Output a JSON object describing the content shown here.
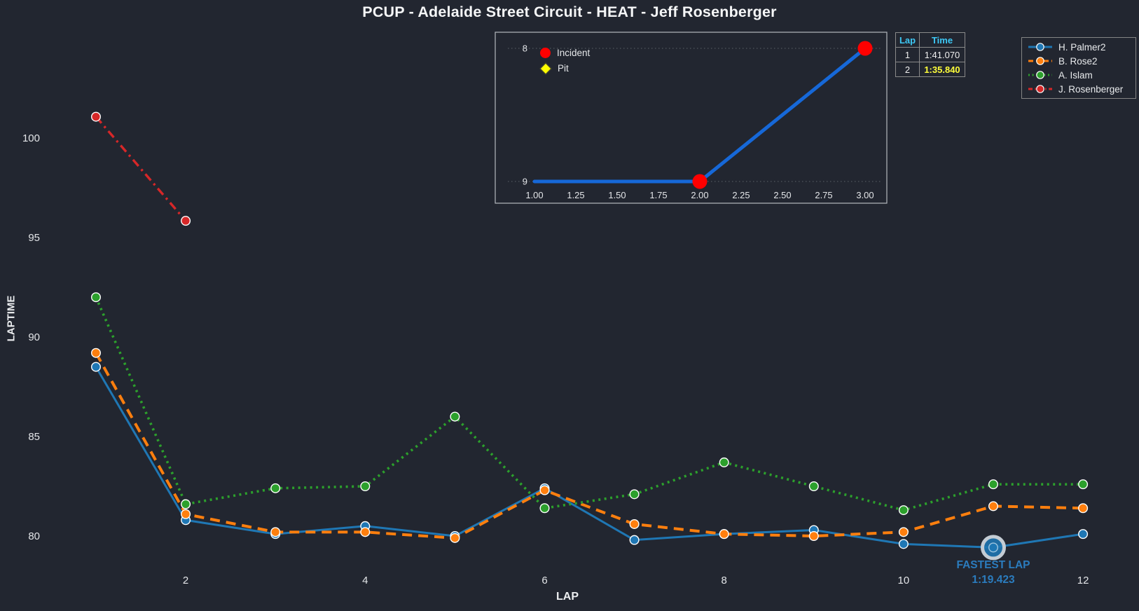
{
  "title": "PCUP - Adelaide Street Circuit - HEAT - Jeff Rosenberger",
  "colors": {
    "background": "#222630",
    "tick_text": "#e3e5e8",
    "palmer_blue": "#1f77b4",
    "rose_orange": "#ff7f0e",
    "islam_green": "#2ca02c",
    "rosenberger_red": "#d62728",
    "inset_line_blue": "#1668d8",
    "incident_red": "#ff0000",
    "pit_yellow": "#ffff00",
    "fastest_ring_silver": "#c4ccd4",
    "annotation_blue": "#2b7cbe",
    "table_header_cyan": "#3dc9f6",
    "table_highlight_yellow": "#ffff3b",
    "table_border": "#8a8a8a",
    "legend_border": "#848484",
    "inset_grid": "#5c6168",
    "inset_border": "#b4b8be"
  },
  "axis": {
    "x_label": "LAP",
    "y_label": "LAPTIME"
  },
  "annotation": {
    "line1": "FASTEST LAP",
    "line2": "1:19.423"
  },
  "laptime_table": {
    "header_lap": "Lap",
    "header_time": "Time",
    "rows": [
      {
        "lap": "1",
        "time": "1:41.070",
        "highlight": false
      },
      {
        "lap": "2",
        "time": "1:35.840",
        "highlight": true
      }
    ]
  },
  "legend": {
    "items": [
      {
        "label": "H. Palmer2",
        "color": "#1f77b4",
        "style": "solid"
      },
      {
        "label": "B. Rose2",
        "color": "#ff7f0e",
        "style": "dashed"
      },
      {
        "label": "A. Islam",
        "color": "#2ca02c",
        "style": "dotted"
      },
      {
        "label": "J. Rosenberger",
        "color": "#d62728",
        "style": "dashdot"
      }
    ]
  },
  "inset_legend": {
    "incident": "Incident",
    "pit": "Pit"
  },
  "chart_data": [
    {
      "type": "line",
      "title": "Lap times by lap",
      "xlabel": "LAP",
      "ylabel": "LAPTIME",
      "xticks": [
        2,
        4,
        6,
        8,
        10,
        12
      ],
      "yticks": [
        100,
        95,
        90,
        85,
        80
      ],
      "xlim": [
        0.5,
        12.6
      ],
      "ylim": [
        78,
        105.5
      ],
      "grid": false,
      "legend_position": "upper right",
      "series": [
        {
          "name": "H. Palmer2",
          "color": "#1f77b4",
          "style": "solid",
          "x": [
            1,
            2,
            3,
            4,
            5,
            6,
            7,
            8,
            9,
            10,
            11,
            12
          ],
          "values": [
            88.5,
            80.8,
            80.1,
            80.5,
            80.0,
            82.4,
            79.8,
            80.1,
            80.3,
            79.6,
            79.423,
            80.1
          ]
        },
        {
          "name": "B. Rose2",
          "color": "#ff7f0e",
          "style": "dashed",
          "x": [
            1,
            2,
            3,
            4,
            5,
            6,
            7,
            8,
            9,
            10,
            11,
            12
          ],
          "values": [
            89.2,
            81.1,
            80.2,
            80.2,
            79.9,
            82.3,
            80.6,
            80.1,
            80.0,
            80.2,
            81.5,
            81.4
          ]
        },
        {
          "name": "A. Islam",
          "color": "#2ca02c",
          "style": "dotted",
          "x": [
            1,
            2,
            3,
            4,
            5,
            6,
            7,
            8,
            9,
            10,
            11,
            12
          ],
          "values": [
            92.0,
            81.6,
            82.4,
            82.5,
            86.0,
            81.4,
            82.1,
            83.7,
            82.5,
            81.3,
            82.6,
            82.6
          ]
        },
        {
          "name": "J. Rosenberger",
          "color": "#d62728",
          "style": "dashdot",
          "x": [
            1,
            2
          ],
          "values": [
            101.07,
            95.84
          ]
        }
      ],
      "fastest_lap": {
        "lap": 11,
        "seconds": 79.423,
        "label": "FASTEST LAP",
        "time": "1:19.423"
      }
    },
    {
      "type": "line",
      "title": "Position by lap (inset)",
      "x": [
        1,
        2,
        3
      ],
      "values": [
        9,
        9,
        8
      ],
      "y_inverted": true,
      "yticks": [
        8,
        9
      ],
      "xticks": [
        "1.00",
        "1.25",
        "1.50",
        "1.75",
        "2.00",
        "2.25",
        "2.50",
        "2.75",
        "3.00"
      ],
      "line_color": "#1668d8",
      "incidents": [
        {
          "x": 2,
          "y": 9
        },
        {
          "x": 3,
          "y": 8
        }
      ],
      "pits": [],
      "legend": [
        "Incident",
        "Pit"
      ]
    }
  ]
}
